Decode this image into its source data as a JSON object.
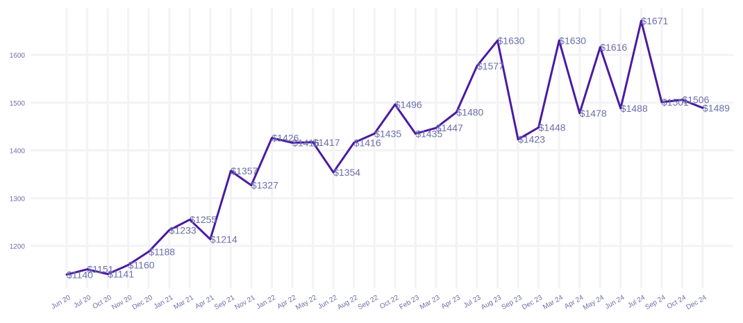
{
  "chart_data": {
    "type": "line",
    "title": "",
    "xlabel": "",
    "ylabel": "",
    "categories": [
      "Jun 20",
      "Jul 20",
      "Oct 20",
      "Nov 20",
      "Dec 20",
      "Jan 21",
      "Mar 21",
      "Apr 21",
      "Sep 21",
      "Nov 21",
      "Jan 22",
      "Apr 22",
      "May 22",
      "Jun 22",
      "Aug 22",
      "Sep 22",
      "Oct 22",
      "Feb 23",
      "Mar 23",
      "Apr 23",
      "Jul 23",
      "Aug 23",
      "Sep 23",
      "Dec 23",
      "Mar 24",
      "Apr 24",
      "May 24",
      "Jun 24",
      "Jul 24",
      "Sep 24",
      "Oct 24",
      "Dec 24"
    ],
    "series": [
      {
        "values": [
          1140,
          1151,
          1141,
          1160,
          1188,
          1233,
          1255,
          1214,
          1357,
          1327,
          1426,
          1416,
          1417,
          1354,
          1416,
          1435,
          1496,
          1435,
          1447,
          1480,
          1577,
          1630,
          1423,
          1448,
          1630,
          1478,
          1616,
          1488,
          1671,
          1501,
          1506,
          1489
        ],
        "labels": [
          "$1140",
          "$1151",
          "$1141",
          "$1160",
          "$1188",
          "$1233",
          "$1255",
          "$1214",
          "$1357",
          "$1327",
          "$1426",
          "$1416",
          "$1417",
          "$1354",
          "$1416",
          "$1435",
          "$1496",
          "$1435",
          "$1447",
          "$1480",
          "$1577",
          "$1630",
          "$1423",
          "$1448",
          "$1630",
          "$1478",
          "$1616",
          "$1488",
          "$1671",
          "$1501",
          "$1506",
          "$1489"
        ]
      }
    ],
    "yticks": [
      1200,
      1300,
      1400,
      1500,
      1600
    ],
    "ylim": [
      1120,
      1690
    ],
    "grid": true,
    "legend": "none",
    "colors": {
      "line": "#4a1aa3",
      "label": "#6b6fa8",
      "grid": "#f3f3f7"
    }
  }
}
